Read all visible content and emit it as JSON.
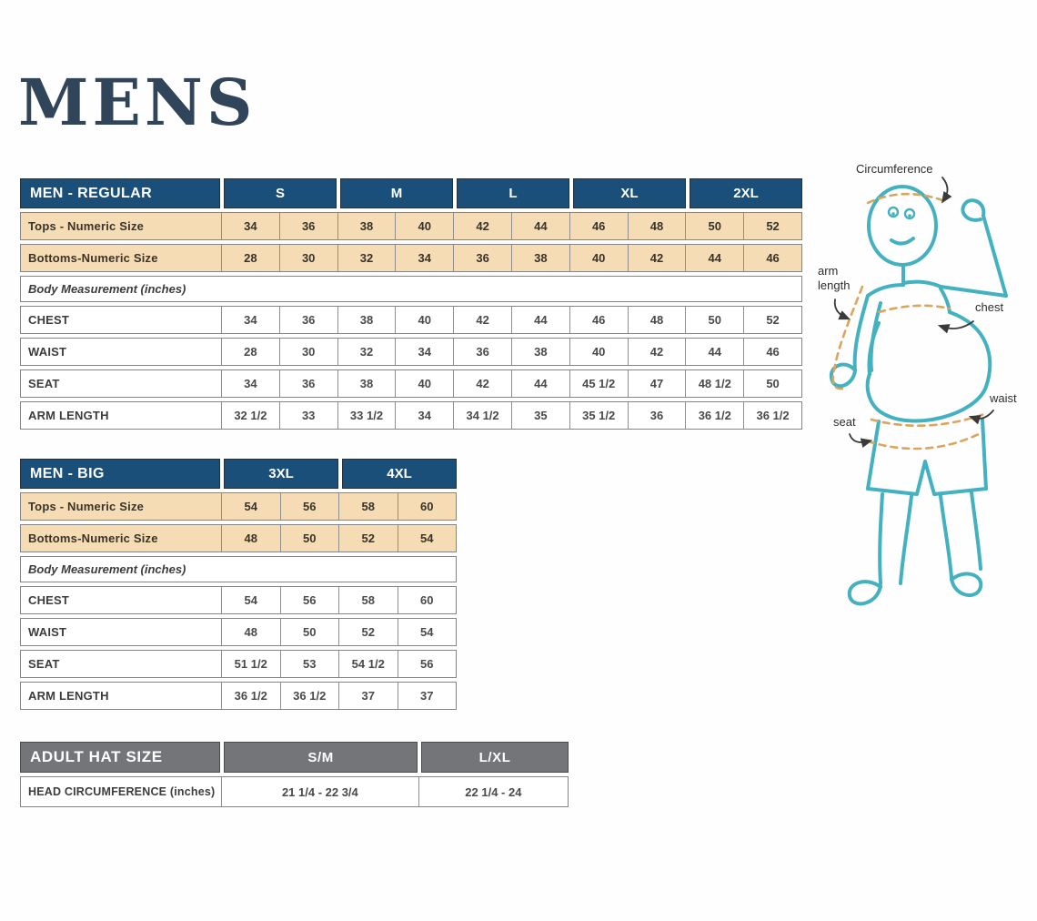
{
  "title": "MENS",
  "colors": {
    "navy": "#1a4f7a",
    "tan": "#f5dcb4",
    "gray": "#747578",
    "teal": "#43b1c0",
    "dash": "#dca55e",
    "title_ink": "#31455a"
  },
  "tables": {
    "regular": {
      "title": "MEN - REGULAR",
      "size_groups": [
        "S",
        "M",
        "L",
        "XL",
        "2XL"
      ],
      "rows": [
        {
          "label": "Tops - Numeric Size",
          "style": "tan",
          "values": [
            "34",
            "36",
            "38",
            "40",
            "42",
            "44",
            "46",
            "48",
            "50",
            "52"
          ]
        },
        {
          "label": "Bottoms-Numeric Size",
          "style": "tan",
          "values": [
            "28",
            "30",
            "32",
            "34",
            "36",
            "38",
            "40",
            "42",
            "44",
            "46"
          ]
        },
        {
          "label": "Body Measurement (inches)",
          "style": "section",
          "values": []
        },
        {
          "label": "CHEST",
          "style": "plain",
          "values": [
            "34",
            "36",
            "38",
            "40",
            "42",
            "44",
            "46",
            "48",
            "50",
            "52"
          ]
        },
        {
          "label": "WAIST",
          "style": "plain",
          "values": [
            "28",
            "30",
            "32",
            "34",
            "36",
            "38",
            "40",
            "42",
            "44",
            "46"
          ]
        },
        {
          "label": "SEAT",
          "style": "plain",
          "values": [
            "34",
            "36",
            "38",
            "40",
            "42",
            "44",
            "45 1/2",
            "47",
            "48 1/2",
            "50"
          ]
        },
        {
          "label": "ARM LENGTH",
          "style": "plain",
          "values": [
            "32 1/2",
            "33",
            "33 1/2",
            "34",
            "34 1/2",
            "35",
            "35 1/2",
            "36",
            "36 1/2",
            "36 1/2"
          ]
        }
      ]
    },
    "big": {
      "title": "MEN - BIG",
      "size_groups": [
        "3XL",
        "4XL"
      ],
      "rows": [
        {
          "label": "Tops - Numeric Size",
          "style": "tan",
          "values": [
            "54",
            "56",
            "58",
            "60"
          ]
        },
        {
          "label": "Bottoms-Numeric Size",
          "style": "tan",
          "values": [
            "48",
            "50",
            "52",
            "54"
          ]
        },
        {
          "label": "Body Measurement (inches)",
          "style": "section",
          "values": []
        },
        {
          "label": "CHEST",
          "style": "plain",
          "values": [
            "54",
            "56",
            "58",
            "60"
          ]
        },
        {
          "label": "WAIST",
          "style": "plain",
          "values": [
            "48",
            "50",
            "52",
            "54"
          ]
        },
        {
          "label": "SEAT",
          "style": "plain",
          "values": [
            "51 1/2",
            "53",
            "54 1/2",
            "56"
          ]
        },
        {
          "label": "ARM LENGTH",
          "style": "plain",
          "values": [
            "36 1/2",
            "36 1/2",
            "37",
            "37"
          ]
        }
      ]
    },
    "hat": {
      "title": "ADULT HAT SIZE",
      "size_groups": [
        "S/M",
        "L/XL"
      ],
      "rows": [
        {
          "label": "HEAD CIRCUMFERENCE (inches)",
          "style": "plain",
          "values": [
            "21 1/4 - 22 3/4",
            "22 1/4 - 24"
          ]
        }
      ]
    }
  },
  "figure": {
    "labels": {
      "circumference": "Circumference",
      "arm_length": "arm length",
      "chest": "chest",
      "waist": "waist",
      "seat": "seat"
    }
  }
}
